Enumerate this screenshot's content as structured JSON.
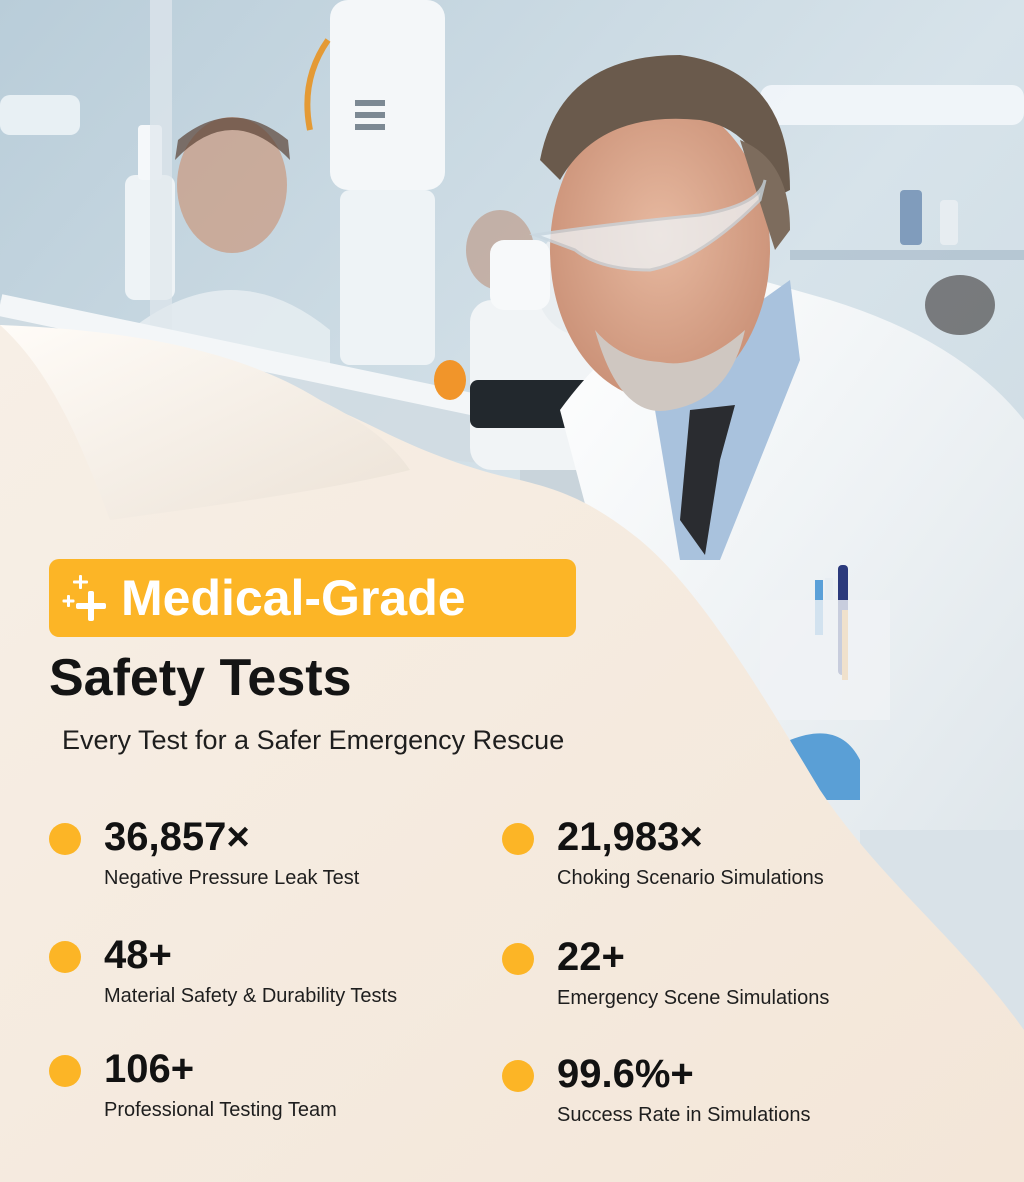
{
  "colors": {
    "accent": "#fcb526",
    "panel": "#f6ece1",
    "text": "#141414"
  },
  "hero": {
    "badge_icon": "sparkle-plus-icon",
    "badge_text": "Medical-Grade",
    "title": "Safety Tests",
    "subtitle": "Every Test for a Safer Emergency Rescue"
  },
  "stats": [
    {
      "value": "36,857×",
      "label": "Negative Pressure Leak Test"
    },
    {
      "value": "21,983×",
      "label": "Choking Scenario Simulations"
    },
    {
      "value": "48+",
      "label": "Material Safety & Durability Tests"
    },
    {
      "value": "22+",
      "label": "Emergency Scene Simulations"
    },
    {
      "value": "106+",
      "label": "Professional Testing Team"
    },
    {
      "value": "99.6%+",
      "label": "Success Rate in Simulations"
    }
  ]
}
